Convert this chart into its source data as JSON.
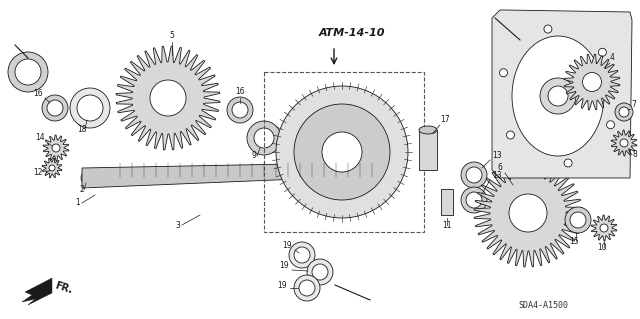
{
  "bg_color": "#ffffff",
  "fig_width": 6.4,
  "fig_height": 3.19,
  "dpi": 100,
  "title_text": "ATM-14-10",
  "diagram_code": "SDA4-A1500",
  "fr_label": "FR.",
  "line_color": "#1a1a1a"
}
